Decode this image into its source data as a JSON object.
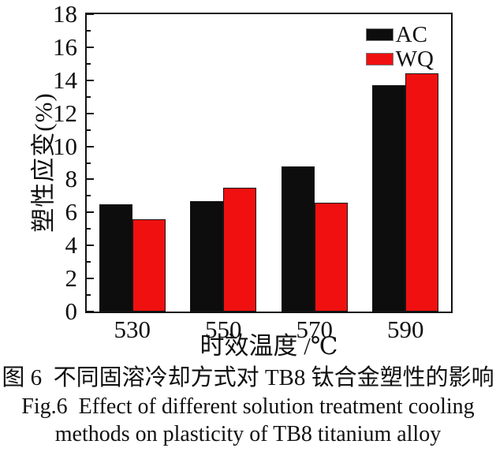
{
  "chart_data": {
    "type": "bar",
    "categories": [
      "530",
      "550",
      "570",
      "590"
    ],
    "series": [
      {
        "name": "AC",
        "color": "#0d0d0d",
        "values": [
          6.5,
          6.7,
          8.8,
          13.7
        ]
      },
      {
        "name": "WQ",
        "color": "#f01010",
        "values": [
          5.6,
          7.5,
          6.6,
          14.4
        ]
      }
    ],
    "xlabel": "时效温度 /℃",
    "ylabel": "塑性应变(%)",
    "ylim": [
      0,
      18
    ],
    "y_major_ticks": [
      0,
      2,
      4,
      6,
      8,
      10,
      12,
      14,
      16,
      18
    ],
    "y_minor_ticks": [
      1,
      3,
      5,
      7,
      9,
      11,
      13,
      15,
      17
    ],
    "grid": false,
    "legend_position": "top-right-inside",
    "frame_color": "#111111",
    "background_color": "#ffffff"
  },
  "caption": {
    "zh": "图 6  不同固溶冷却方式对 TB8 钛合金塑性的影响",
    "en_line1": "Fig.6  Effect of different solution treatment cooling",
    "en_line2": "methods on plasticity of TB8 titanium alloy"
  }
}
